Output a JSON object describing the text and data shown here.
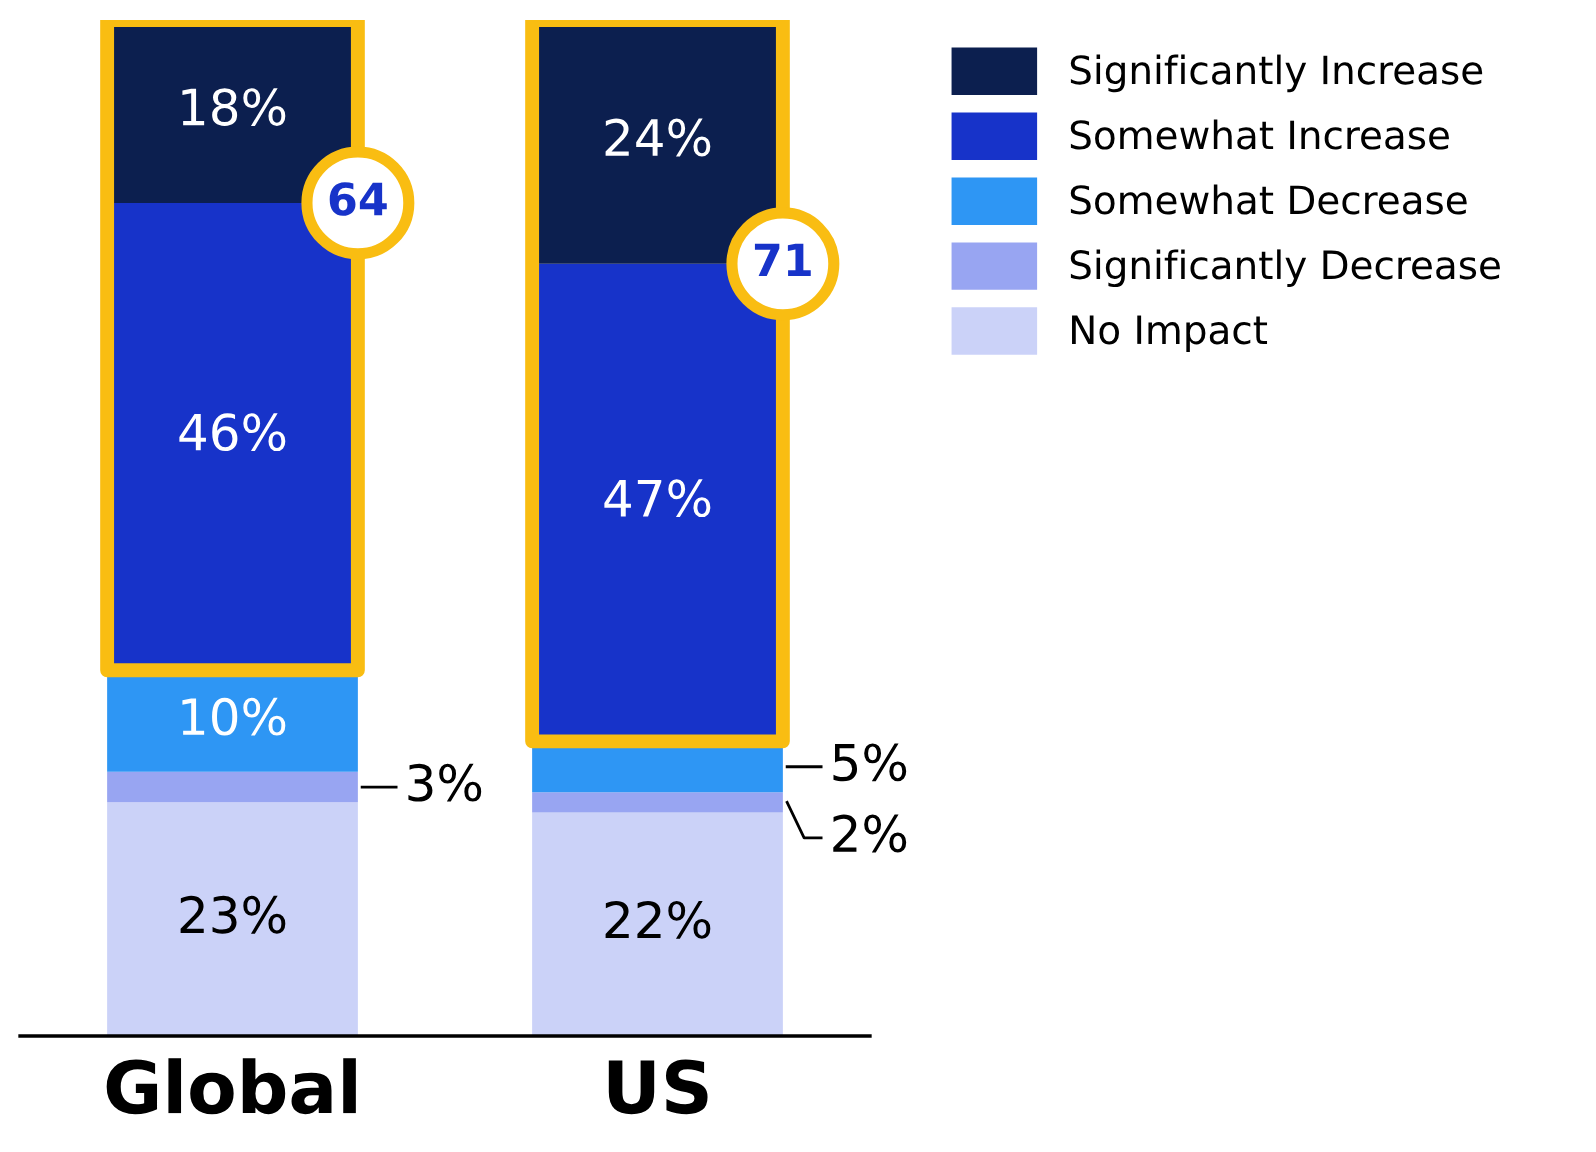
{
  "chart_data": {
    "type": "bar",
    "stacked": true,
    "categories": [
      "Global",
      "US"
    ],
    "series": [
      {
        "name": "No Impact",
        "color": "#cbd2f8",
        "values": [
          23,
          22
        ],
        "value_labels": [
          "23%",
          "22%"
        ]
      },
      {
        "name": "Significantly Decrease",
        "color": "#98a5f2",
        "values": [
          3,
          2
        ],
        "value_labels": [
          "3%",
          "2%"
        ]
      },
      {
        "name": "Somewhat Decrease",
        "color": "#2e96f4",
        "values": [
          10,
          5
        ],
        "value_labels": [
          "10%",
          "5%"
        ]
      },
      {
        "name": "Somewhat Increase",
        "color": "#1733c9",
        "values": [
          46,
          47
        ],
        "value_labels": [
          "46%",
          "47%"
        ]
      },
      {
        "name": "Significantly Increase",
        "color": "#0c1f4f",
        "values": [
          18,
          24
        ],
        "value_labels": [
          "18%",
          "24%"
        ]
      }
    ],
    "annotations": [
      {
        "text": "64",
        "x": "Global",
        "y": 82
      },
      {
        "text": "71",
        "x": "US",
        "y": 76
      }
    ],
    "legend": "right",
    "grid": false,
    "tick_labels": "x"
  }
}
